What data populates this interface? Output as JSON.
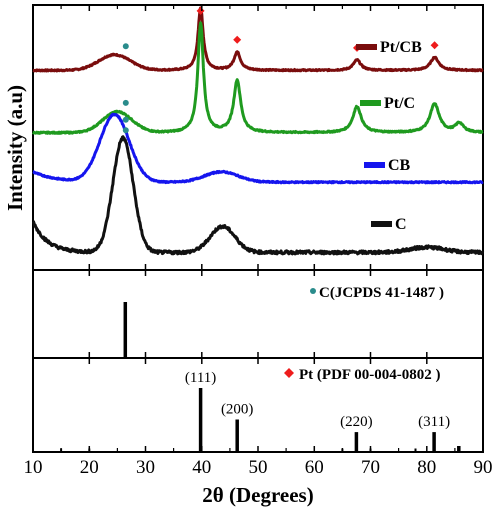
{
  "chart_data": {
    "type": "line",
    "xlabel": "2θ (Degrees)",
    "ylabel": "Intensity (a.u)",
    "xlim": [
      10,
      90
    ],
    "x_ticks": [
      "10",
      "20",
      "30",
      "40",
      "50",
      "60",
      "70",
      "80",
      "90"
    ],
    "colors": {
      "pt_cb": "#7a0d0d",
      "pt_c": "#1f9a1f",
      "cb": "#1515ee",
      "c": "#111111",
      "carbon_marker": "#2a8c8c",
      "pt_marker": "#ee1c1c"
    },
    "series": [
      {
        "name": "Pt/CB",
        "baseline": 0.76,
        "broad_peaks": [
          {
            "center": 24.5,
            "height": 0.06,
            "width": 2.8
          }
        ],
        "sharp_peaks": [
          {
            "center": 39.8,
            "height": 0.24,
            "width": 0.55
          },
          {
            "center": 46.3,
            "height": 0.07,
            "width": 0.7
          },
          {
            "center": 67.6,
            "height": 0.04,
            "width": 0.8
          },
          {
            "center": 81.4,
            "height": 0.05,
            "width": 0.9
          }
        ]
      },
      {
        "name": "Pt/C",
        "baseline": 0.52,
        "broad_peaks": [
          {
            "center": 25.0,
            "height": 0.08,
            "width": 2.6
          }
        ],
        "sharp_peaks": [
          {
            "center": 39.8,
            "height": 0.42,
            "width": 0.6
          },
          {
            "center": 46.3,
            "height": 0.2,
            "width": 0.75
          },
          {
            "center": 67.6,
            "height": 0.1,
            "width": 0.9
          },
          {
            "center": 81.4,
            "height": 0.11,
            "width": 1.0
          },
          {
            "center": 85.8,
            "height": 0.035,
            "width": 0.9
          }
        ]
      },
      {
        "name": "CB",
        "baseline": 0.33,
        "broad_peaks": [
          {
            "center": 24.5,
            "height": 0.26,
            "width": 2.6
          },
          {
            "center": 43.5,
            "height": 0.04,
            "width": 3.0
          }
        ]
      },
      {
        "name": "C",
        "baseline": 0.06,
        "broad_peaks": [
          {
            "center": 26.0,
            "height": 0.44,
            "width": 1.8
          },
          {
            "center": 43.7,
            "height": 0.1,
            "width": 2.2
          },
          {
            "center": 80.0,
            "height": 0.02,
            "width": 3.0
          }
        ]
      }
    ],
    "reference_carbon": {
      "name": "C(JCPDS 41-1487 )",
      "lines": [
        {
          "x": 26.4,
          "intensity": 1.0
        }
      ]
    },
    "reference_pt": {
      "name": "Pt (PDF 00-004-0802 )",
      "lines": [
        {
          "x": 39.8,
          "intensity": 1.0,
          "label": "(111)"
        },
        {
          "x": 46.3,
          "intensity": 0.5,
          "label": "(200)"
        },
        {
          "x": 67.5,
          "intensity": 0.3,
          "label": "(220)"
        },
        {
          "x": 81.3,
          "intensity": 0.3,
          "label": "(311)"
        },
        {
          "x": 85.7,
          "intensity": 0.08
        },
        {
          "x": 15.0,
          "intensity": 0.04
        },
        {
          "x": 20.0,
          "intensity": 0.04
        },
        {
          "x": 65.0,
          "intensity": 0.04
        },
        {
          "x": 70.0,
          "intensity": 0.04
        },
        {
          "x": 78.0,
          "intensity": 0.04
        }
      ]
    },
    "markers": {
      "carbon": [
        {
          "series": "Pt/CB",
          "x": 26.5
        },
        {
          "series": "Pt/C",
          "x": 26.5
        },
        {
          "series": "CB",
          "x": 26.5
        },
        {
          "series": "C",
          "x": 26.5
        }
      ],
      "pt": [
        {
          "series": "Pt/CB",
          "x": 39.8
        },
        {
          "series": "Pt/CB",
          "x": 46.3
        },
        {
          "series": "Pt/CB",
          "x": 67.6
        },
        {
          "series": "Pt/CB",
          "x": 81.4
        },
        {
          "series": "Pt/C",
          "x": 39.8
        }
      ]
    }
  }
}
